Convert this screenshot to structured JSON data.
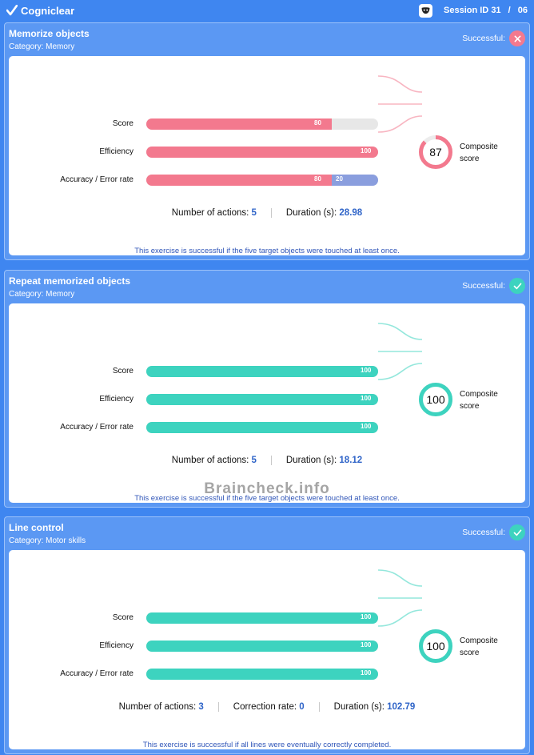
{
  "app": {
    "name": "Cogniclear"
  },
  "session": {
    "label": "Session ID",
    "id": "31",
    "separator": "/",
    "total": "06"
  },
  "watermark": "Braincheck.info",
  "exercises": [
    {
      "title": "Memorize objects",
      "category": "Category: Memory",
      "status_label": "Successful:",
      "status": "fail",
      "rows": [
        {
          "label": "Score",
          "value": 80,
          "value_text": "80"
        },
        {
          "label": "Efficiency",
          "value": 100,
          "value_text": "100"
        },
        {
          "label": "Accuracy / Error rate",
          "value": 80,
          "value_text": "80",
          "error": 20,
          "error_text": "20"
        }
      ],
      "composite": {
        "value": 87,
        "value_text": "87",
        "label_1": "Composite",
        "label_2": "score"
      },
      "metrics": [
        {
          "label": "Number of actions:",
          "value": "5"
        },
        {
          "label": "Duration (s):",
          "value": "28.98"
        }
      ],
      "note": "This exercise is successful if the five target objects were touched at least once."
    },
    {
      "title": "Repeat memorized objects",
      "category": "Category: Memory",
      "status_label": "Successful:",
      "status": "ok",
      "rows": [
        {
          "label": "Score",
          "value": 100,
          "value_text": "100"
        },
        {
          "label": "Efficiency",
          "value": 100,
          "value_text": "100"
        },
        {
          "label": "Accuracy / Error rate",
          "value": 100,
          "value_text": "100"
        }
      ],
      "composite": {
        "value": 100,
        "value_text": "100",
        "label_1": "Composite",
        "label_2": "score"
      },
      "metrics": [
        {
          "label": "Number of actions:",
          "value": "5"
        },
        {
          "label": "Duration (s):",
          "value": "18.12"
        }
      ],
      "note": "This exercise is successful if the five target objects were touched at least once."
    },
    {
      "title": "Line control",
      "category": "Category: Motor skills",
      "status_label": "Successful:",
      "status": "ok",
      "rows": [
        {
          "label": "Score",
          "value": 100,
          "value_text": "100"
        },
        {
          "label": "Efficiency",
          "value": 100,
          "value_text": "100"
        },
        {
          "label": "Accuracy / Error rate",
          "value": 100,
          "value_text": "100"
        }
      ],
      "composite": {
        "value": 100,
        "value_text": "100",
        "label_1": "Composite",
        "label_2": "score"
      },
      "metrics": [
        {
          "label": "Number of actions:",
          "value": "3"
        },
        {
          "label": "Correction rate:",
          "value": "0"
        },
        {
          "label": "Duration (s):",
          "value": "102.79"
        }
      ],
      "note": "This exercise is successful if all lines were eventually correctly completed."
    }
  ],
  "colors": {
    "fail": "#f3798e",
    "ok": "#3dd3bf",
    "error": "#8a9ede",
    "track": "#e7e7e7"
  }
}
